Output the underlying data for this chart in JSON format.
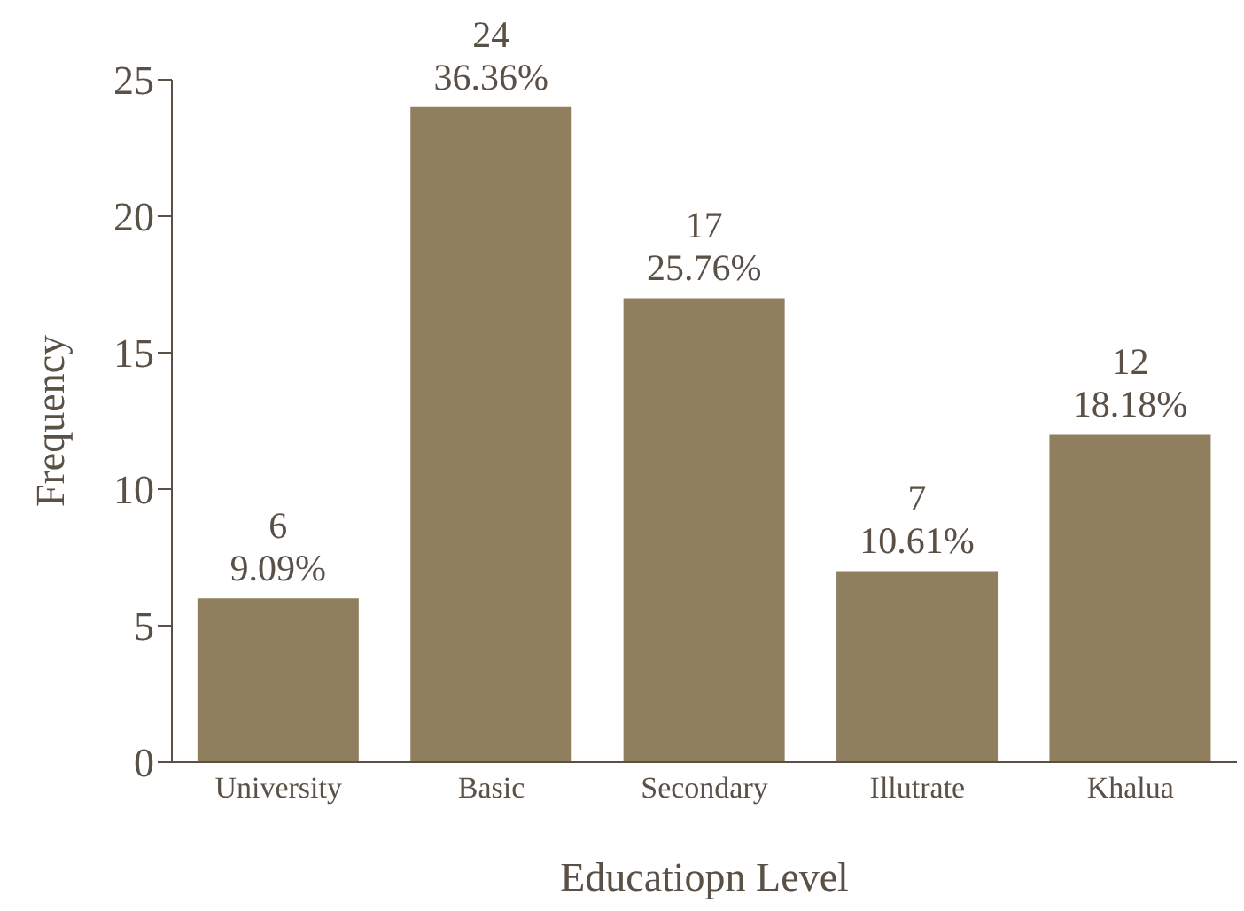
{
  "chart_data": {
    "type": "bar",
    "xlabel": "Educatiopn Level",
    "ylabel": "Frequency",
    "categories": [
      "University",
      "Basic",
      "Secondary",
      "Illutrate",
      "Khalua"
    ],
    "values": [
      6,
      24,
      17,
      7,
      12
    ],
    "value_labels": [
      "6\n9.09%",
      "24\n36.36%",
      "17\n25.76%",
      "7\n10.61%",
      "12\n18.18%"
    ],
    "color": "#8f7f5f",
    "ylim": [
      0,
      25
    ],
    "yticks": [
      0,
      5,
      10,
      15,
      20,
      25
    ],
    "grid": false,
    "legend": false
  }
}
